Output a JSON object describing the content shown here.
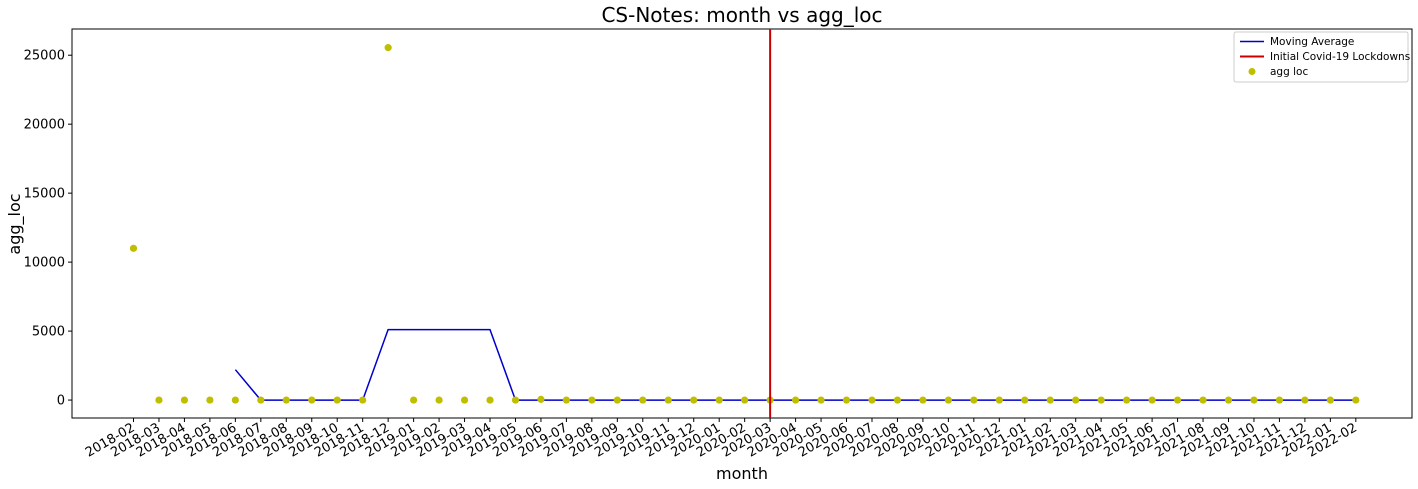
{
  "chart_data": {
    "type": "line",
    "title": "CS-Notes: month vs agg_loc",
    "xlabel": "month",
    "ylabel": "agg_loc",
    "categories": [
      "2018-02",
      "2018-03",
      "2018-04",
      "2018-05",
      "2018-06",
      "2018-07",
      "2018-08",
      "2018-09",
      "2018-10",
      "2018-11",
      "2018-12",
      "2019-01",
      "2019-02",
      "2019-03",
      "2019-04",
      "2019-05",
      "2019-06",
      "2019-07",
      "2019-08",
      "2019-09",
      "2019-10",
      "2019-11",
      "2019-12",
      "2020-01",
      "2020-02",
      "2020-03",
      "2020-04",
      "2020-05",
      "2020-06",
      "2020-07",
      "2020-08",
      "2020-09",
      "2020-10",
      "2020-11",
      "2020-12",
      "2021-01",
      "2021-02",
      "2021-03",
      "2021-04",
      "2021-05",
      "2021-06",
      "2021-07",
      "2021-08",
      "2021-09",
      "2021-10",
      "2021-11",
      "2021-12",
      "2022-01",
      "2022-02"
    ],
    "ylim": [
      -1300,
      26900
    ],
    "yticks": [
      0,
      5000,
      10000,
      15000,
      20000,
      25000
    ],
    "grid": false,
    "legend_position": "top-right",
    "series": [
      {
        "name": "Moving Average",
        "kind": "line",
        "color": "#0000cc",
        "values": [
          null,
          null,
          null,
          null,
          2200,
          0,
          0,
          0,
          0,
          0,
          5110,
          5110,
          5110,
          5110,
          5110,
          0,
          0,
          0,
          0,
          0,
          0,
          0,
          0,
          0,
          0,
          0,
          0,
          0,
          0,
          0,
          0,
          0,
          0,
          0,
          0,
          0,
          0,
          0,
          0,
          0,
          0,
          0,
          0,
          0,
          0,
          0,
          0,
          0,
          0
        ]
      },
      {
        "name": "agg loc",
        "kind": "scatter",
        "color": "#bfbf00",
        "values": [
          11000,
          0,
          0,
          0,
          0,
          0,
          0,
          0,
          0,
          0,
          25550,
          0,
          0,
          0,
          0,
          0,
          50,
          0,
          0,
          0,
          0,
          0,
          0,
          0,
          0,
          0,
          0,
          0,
          0,
          0,
          0,
          0,
          0,
          0,
          0,
          0,
          0,
          0,
          0,
          0,
          0,
          0,
          0,
          0,
          0,
          0,
          0,
          0,
          0
        ]
      }
    ],
    "vline": {
      "name": "Initial Covid-19 Lockdowns",
      "x": "2020-03",
      "color": "#cc0000"
    }
  }
}
